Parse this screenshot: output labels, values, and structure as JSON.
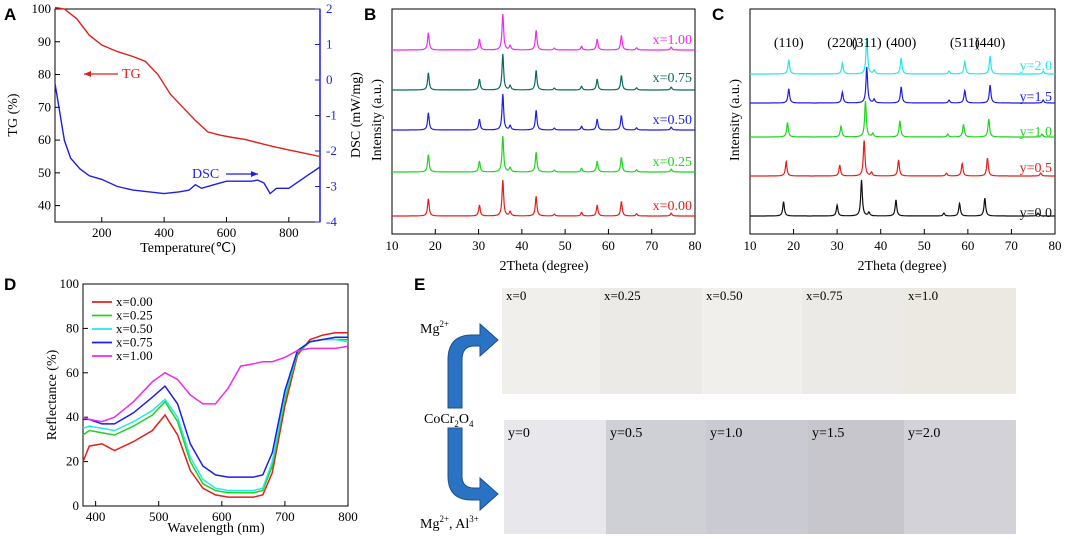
{
  "panels": {
    "A": "A",
    "B": "B",
    "C": "C",
    "D": "D",
    "E": "E"
  },
  "chart_data": [
    {
      "id": "A",
      "type": "line",
      "xlabel": "Temperature(℃)",
      "ylabel": "TG (%)",
      "ylabel2": "DSC (mW/mg)",
      "xlim": [
        50,
        900
      ],
      "ylim": [
        35,
        100
      ],
      "ylim2": [
        -4,
        2
      ],
      "xticks": [
        200,
        400,
        600,
        800
      ],
      "yticks": [
        40,
        50,
        60,
        70,
        80,
        90,
        100
      ],
      "yticks2": [
        -4,
        -3,
        -2,
        -1,
        0,
        1,
        2
      ],
      "annotations": {
        "tg": "TG",
        "dsc": "DSC"
      },
      "series": [
        {
          "name": "TG",
          "color": "#e0201b",
          "axis": "left",
          "x": [
            50,
            80,
            120,
            160,
            200,
            250,
            300,
            340,
            380,
            420,
            460,
            500,
            540,
            580,
            620,
            660,
            700,
            750,
            800,
            850,
            900
          ],
          "y": [
            100.5,
            100,
            97,
            92,
            89,
            87,
            85.5,
            84,
            80,
            74,
            70,
            66,
            62.5,
            61.5,
            60.8,
            60.2,
            59.2,
            58,
            57,
            56,
            55
          ]
        },
        {
          "name": "DSC",
          "color": "#1e1ee8",
          "axis": "right",
          "x": [
            50,
            65,
            80,
            100,
            130,
            160,
            200,
            250,
            300,
            350,
            400,
            450,
            480,
            500,
            520,
            560,
            600,
            640,
            680,
            700,
            720,
            740,
            760,
            800,
            850,
            900
          ],
          "y": [
            -0.1,
            -0.9,
            -1.7,
            -2.2,
            -2.5,
            -2.7,
            -2.8,
            -3.0,
            -3.1,
            -3.15,
            -3.2,
            -3.15,
            -3.1,
            -2.95,
            -3.05,
            -2.95,
            -2.85,
            -2.85,
            -2.85,
            -2.82,
            -2.9,
            -3.2,
            -3.05,
            -3.05,
            -2.75,
            -2.45
          ]
        }
      ]
    },
    {
      "id": "B",
      "type": "line",
      "xlabel": "2Theta (degree)",
      "ylabel": "Intensity (a.u.)",
      "xlim": [
        10,
        80
      ],
      "xticks": [
        10,
        20,
        30,
        40,
        50,
        60,
        70,
        80
      ],
      "peaks_2theta": [
        18.4,
        30.2,
        35.6,
        37.3,
        43.3,
        47.5,
        53.8,
        57.4,
        63.0,
        66.5,
        74.5
      ],
      "peak_heights": [
        0.48,
        0.3,
        1.0,
        0.12,
        0.55,
        0.05,
        0.1,
        0.3,
        0.4,
        0.06,
        0.08
      ],
      "series": [
        {
          "name": "x=0.00",
          "color": "#e0201b",
          "scale": 1.0
        },
        {
          "name": "x=0.25",
          "color": "#1ed41e",
          "scale": 1.0
        },
        {
          "name": "x=0.50",
          "color": "#1e1ee8",
          "scale": 1.0
        },
        {
          "name": "x=0.75",
          "color": "#0a6a5e",
          "scale": 1.0
        },
        {
          "name": "x=1.00",
          "color": "#ee2aee",
          "scale": 1.0
        }
      ]
    },
    {
      "id": "C",
      "type": "line",
      "xlabel": "2Theta (degree)",
      "ylabel": "Intensity (a.u.)",
      "xlim": [
        10,
        80
      ],
      "xticks": [
        10,
        20,
        30,
        40,
        50,
        60,
        70,
        80
      ],
      "peak_labels": [
        {
          "text": "(110)",
          "x": 18.9
        },
        {
          "text": "(220)",
          "x": 31.2
        },
        {
          "text": "(311)",
          "x": 36.8
        },
        {
          "text": "(400)",
          "x": 44.7
        },
        {
          "text": "(511)",
          "x": 59.3
        },
        {
          "text": "(440)",
          "x": 65.1
        }
      ],
      "peaks_2theta": [
        18.9,
        31.2,
        36.8,
        38.5,
        44.7,
        55.7,
        59.3,
        65.1,
        77.3
      ],
      "peak_heights": [
        0.4,
        0.3,
        1.0,
        0.1,
        0.45,
        0.08,
        0.35,
        0.5,
        0.08
      ],
      "series": [
        {
          "name": "y=0.0",
          "color": "#111111",
          "shift": -1.2
        },
        {
          "name": "y=0.5",
          "color": "#e0201b",
          "shift": -0.6
        },
        {
          "name": "y=1.0",
          "color": "#1ed41e",
          "shift": -0.3
        },
        {
          "name": "y=1.5",
          "color": "#1e1ee8",
          "shift": 0.0
        },
        {
          "name": "y=2.0",
          "color": "#22e8e8",
          "shift": 0.0
        }
      ]
    },
    {
      "id": "D",
      "type": "line",
      "xlabel": "Wavelength (nm)",
      "ylabel": "Reflectance (%)",
      "xlim": [
        380,
        800
      ],
      "ylim": [
        0,
        100
      ],
      "xticks": [
        400,
        500,
        600,
        700,
        800
      ],
      "yticks": [
        0,
        20,
        40,
        60,
        80,
        100
      ],
      "series": [
        {
          "name": "x=0.00",
          "color": "#e0201b",
          "x": [
            380,
            390,
            410,
            430,
            460,
            490,
            510,
            530,
            550,
            570,
            590,
            610,
            630,
            650,
            665,
            680,
            700,
            720,
            740,
            760,
            780,
            800
          ],
          "y": [
            20,
            27,
            28,
            25,
            29,
            34,
            41,
            32,
            16,
            8,
            5,
            4,
            4,
            4,
            5,
            15,
            45,
            68,
            75,
            77,
            78,
            78
          ]
        },
        {
          "name": "x=0.25",
          "color": "#1ed41e",
          "x": [
            380,
            390,
            410,
            430,
            460,
            490,
            510,
            530,
            550,
            570,
            590,
            610,
            630,
            650,
            665,
            680,
            700,
            720,
            740,
            760,
            780,
            800
          ],
          "y": [
            32,
            34,
            33,
            32,
            36,
            41,
            47,
            38,
            20,
            10,
            7,
            6,
            6,
            6,
            7,
            18,
            48,
            69,
            74,
            75,
            75,
            75
          ]
        },
        {
          "name": "x=0.50",
          "color": "#22e8e8",
          "x": [
            380,
            390,
            410,
            430,
            460,
            490,
            510,
            530,
            550,
            570,
            590,
            610,
            630,
            650,
            665,
            680,
            700,
            720,
            740,
            760,
            780,
            800
          ],
          "y": [
            35,
            36,
            35,
            34,
            38,
            43,
            48,
            40,
            22,
            12,
            8,
            7,
            7,
            7,
            8,
            20,
            50,
            70,
            74,
            75,
            75,
            74
          ]
        },
        {
          "name": "x=0.75",
          "color": "#1e1ee8",
          "x": [
            380,
            390,
            410,
            430,
            460,
            490,
            510,
            530,
            550,
            570,
            590,
            610,
            630,
            650,
            665,
            680,
            700,
            720,
            740,
            760,
            780,
            800
          ],
          "y": [
            39,
            39,
            37,
            37,
            42,
            49,
            54,
            46,
            28,
            18,
            14,
            13,
            13,
            13,
            14,
            24,
            52,
            70,
            74,
            75,
            76,
            76
          ]
        },
        {
          "name": "x=1.00",
          "color": "#ee2aee",
          "x": [
            380,
            390,
            410,
            430,
            460,
            490,
            510,
            530,
            550,
            570,
            590,
            610,
            630,
            650,
            665,
            680,
            700,
            720,
            740,
            760,
            780,
            800
          ],
          "y": [
            40,
            39,
            38,
            40,
            47,
            56,
            60,
            57,
            50,
            46,
            46,
            53,
            63,
            64,
            65,
            65,
            67,
            70,
            71,
            71,
            71,
            72
          ]
        }
      ]
    }
  ],
  "panelE": {
    "mg_label": "Mg",
    "mg_sup": "2+",
    "center_label": "CoCr",
    "center_sub1": "2",
    "center_mid": "O",
    "center_sub2": "4",
    "mgal_label": "Mg",
    "mgal_sup": "2+",
    "mgal_sep": ", Al",
    "al_sup": "3+",
    "top_row": [
      {
        "label": "x=0",
        "color": "#0f6c64"
      },
      {
        "label": "x=0.25",
        "color": "#13807a"
      },
      {
        "label": "x=0.50",
        "color": "#15847c"
      },
      {
        "label": "x=0.75",
        "color": "#1c9a8a"
      },
      {
        "label": "x=1.0",
        "color": "#b8b8a0"
      }
    ],
    "bottom_row": [
      {
        "label": "y=0",
        "color": "#1e9a84"
      },
      {
        "label": "y=0.5",
        "color": "#156e62"
      },
      {
        "label": "y=1.0",
        "color": "#13685e"
      },
      {
        "label": "y=1.5",
        "color": "#155a70"
      },
      {
        "label": "y=2.0",
        "color": "#2e7fc0"
      }
    ]
  }
}
